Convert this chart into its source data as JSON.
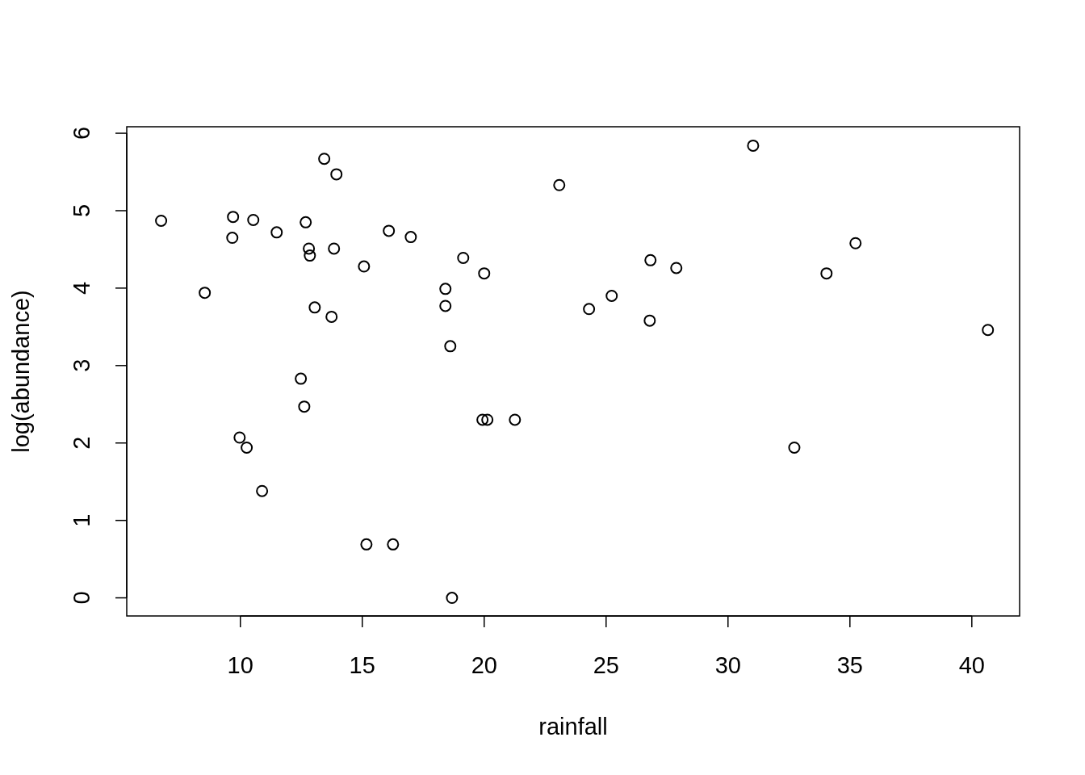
{
  "chart_data": {
    "type": "scatter",
    "xlabel": "rainfall",
    "ylabel": "log(abundance)",
    "marker": "circle",
    "grid": false,
    "xlim": [
      5.34,
      41.96
    ],
    "ylim": [
      -0.234,
      6.084
    ],
    "xticks": [
      10,
      15,
      20,
      25,
      30,
      35,
      40
    ],
    "yticks": [
      0,
      1,
      2,
      3,
      4,
      5,
      6
    ],
    "series": [
      {
        "color": "#000000",
        "x": [
          6.75,
          8.54,
          9.7,
          9.67,
          10.53,
          9.97,
          10.26,
          10.89,
          11.49,
          12.68,
          12.48,
          12.62,
          12.81,
          12.85,
          13.05,
          13.44,
          13.94,
          13.84,
          13.74,
          15.07,
          15.17,
          16.09,
          16.26,
          16.99,
          18.41,
          18.41,
          18.61,
          18.68,
          19.14,
          20.0,
          19.93,
          20.13,
          21.26,
          23.08,
          24.3,
          25.23,
          26.82,
          26.79,
          27.88,
          31.03,
          32.72,
          34.04,
          35.23,
          40.66
        ],
        "values": [
          4.87,
          3.94,
          4.92,
          4.65,
          4.88,
          2.07,
          1.94,
          1.38,
          4.72,
          4.85,
          2.83,
          2.47,
          4.51,
          4.42,
          3.75,
          5.67,
          5.47,
          4.51,
          3.63,
          4.28,
          0.69,
          4.74,
          0.69,
          4.66,
          3.99,
          3.77,
          3.25,
          0,
          4.39,
          4.19,
          2.3,
          2.3,
          2.3,
          5.33,
          3.73,
          3.9,
          4.36,
          3.58,
          4.26,
          5.84,
          1.94,
          4.19,
          4.58,
          3.46
        ]
      }
    ]
  }
}
